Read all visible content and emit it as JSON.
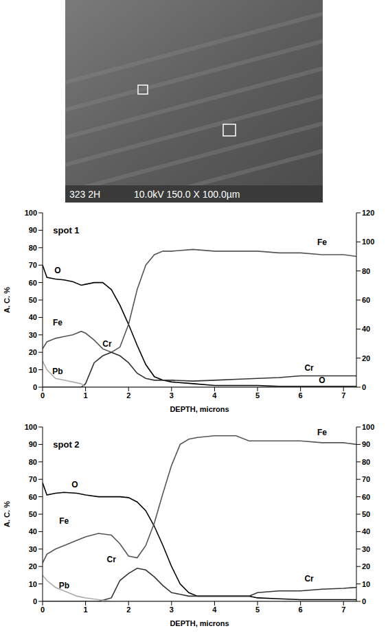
{
  "micrograph": {
    "labels": [
      "323 2H",
      "10.0kV 150.0 X 100.0µm"
    ]
  },
  "chart_data": [
    {
      "type": "line",
      "title": "spot 1",
      "x_label": "DEPTH, microns",
      "y_label": "A. C. %",
      "x": [
        0,
        0.1,
        0.3,
        0.5,
        0.7,
        0.9,
        1.0,
        1.2,
        1.4,
        1.6,
        1.8,
        2.0,
        2.2,
        2.4,
        2.6,
        2.8,
        3.0,
        3.5,
        4.0,
        4.5,
        5.0,
        5.5,
        6.0,
        6.5,
        7.0,
        7.3
      ],
      "xlim": [
        0,
        7.3
      ],
      "xticks": [
        0,
        1,
        2,
        3,
        4,
        5,
        6,
        7
      ],
      "ylim": [
        0,
        100
      ],
      "yticks": [
        0,
        10,
        20,
        30,
        40,
        50,
        60,
        70,
        80,
        90,
        100
      ],
      "y2lim": [
        0,
        120
      ],
      "y2ticks": [
        0,
        20,
        40,
        60,
        80,
        100,
        120
      ],
      "grid": false,
      "series": [
        {
          "name": "O",
          "color": "#000000",
          "values": [
            70,
            63,
            62,
            61.5,
            60.5,
            58.5,
            59,
            60,
            60,
            56,
            47,
            36,
            24,
            13,
            6,
            4,
            3,
            2,
            1,
            1,
            1,
            0.5,
            0.5,
            0.5,
            0.5,
            0.5
          ]
        },
        {
          "name": "Fe",
          "color": "#555555",
          "values": [
            22,
            26,
            28,
            29,
            30,
            32,
            31,
            27,
            22,
            20,
            23,
            36,
            56,
            70,
            76,
            78,
            78,
            79,
            78,
            78,
            78,
            77,
            77,
            76,
            76,
            75
          ]
        },
        {
          "name": "Cr",
          "color": "#333333",
          "values": [
            0,
            0,
            0,
            0,
            0,
            0,
            2,
            14,
            18,
            20,
            18,
            14,
            8,
            5,
            4,
            4,
            4,
            3.5,
            4,
            4.5,
            5,
            5.5,
            6.5,
            6.5,
            6.5,
            6.5
          ]
        },
        {
          "name": "Pb",
          "color": "#aaaaaa",
          "values": [
            15,
            10,
            5,
            4,
            3,
            2,
            0,
            0,
            0,
            0,
            0,
            0,
            0,
            0,
            0,
            0,
            0,
            0,
            0,
            0,
            0,
            0,
            0,
            0,
            0,
            0
          ]
        }
      ]
    },
    {
      "type": "line",
      "title": "spot 2",
      "x_label": "DEPTH, microns",
      "y_label": "A. C. %",
      "x": [
        0,
        0.1,
        0.3,
        0.5,
        0.8,
        1.0,
        1.3,
        1.6,
        1.8,
        2.0,
        2.2,
        2.4,
        2.6,
        2.8,
        3.0,
        3.2,
        3.4,
        3.6,
        4.0,
        4.5,
        4.8,
        5.0,
        5.5,
        6.0,
        6.5,
        7.0,
        7.3
      ],
      "xlim": [
        0,
        7.3
      ],
      "xticks": [
        0,
        1,
        2,
        3,
        4,
        5,
        6,
        7
      ],
      "ylim": [
        0,
        100
      ],
      "yticks": [
        0,
        10,
        20,
        30,
        40,
        50,
        60,
        70,
        80,
        90,
        100
      ],
      "y2lim": [
        0,
        100
      ],
      "y2ticks": [
        0,
        10,
        20,
        30,
        40,
        50,
        60,
        70,
        80,
        90,
        100
      ],
      "grid": false,
      "series": [
        {
          "name": "O",
          "color": "#000000",
          "values": [
            68,
            61,
            62,
            62.5,
            62,
            61,
            60,
            60,
            60,
            59.5,
            57,
            52,
            43,
            32,
            20,
            10,
            5,
            3,
            3,
            3,
            3,
            2,
            1.5,
            1,
            1,
            1,
            1
          ]
        },
        {
          "name": "Fe",
          "color": "#555555",
          "values": [
            22,
            27,
            30,
            32,
            35,
            37,
            39,
            38,
            33,
            26,
            25,
            32,
            45,
            62,
            78,
            90,
            93,
            94,
            95,
            95,
            92,
            92,
            92,
            92,
            91,
            91,
            90
          ]
        },
        {
          "name": "Cr",
          "color": "#333333",
          "values": [
            0,
            0,
            0,
            0,
            0,
            0,
            0,
            2,
            12,
            16,
            19,
            18,
            14,
            9,
            5,
            4,
            3,
            3,
            3,
            3,
            3,
            5,
            6,
            6,
            7,
            7.5,
            8
          ]
        },
        {
          "name": "Pb",
          "color": "#aaaaaa",
          "values": [
            15,
            12,
            8,
            6,
            3,
            2,
            1,
            0,
            0,
            0,
            0,
            0,
            0,
            0,
            0,
            0,
            0,
            0,
            0,
            0,
            0,
            0,
            0,
            0,
            0,
            0,
            0
          ]
        }
      ]
    }
  ]
}
